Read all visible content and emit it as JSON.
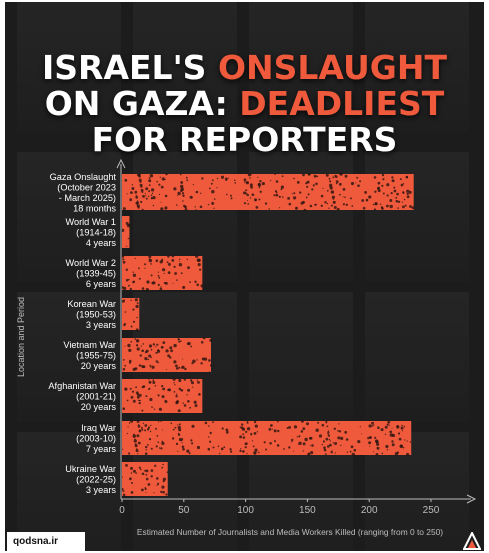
{
  "headline": {
    "line1_white": "ISRAEL'S ",
    "line1_accent": "ONSLAUGHT",
    "line2_white": "ON GAZA: ",
    "line2_accent": "DEADLIEST",
    "line3_white": "FOR REPORTERS"
  },
  "watermark": "qodsna.ir",
  "colors": {
    "background": "#1c1c1c",
    "bar": "#ef5a3c",
    "text": "#ffffff",
    "axis": "#bdbdbd",
    "accent": "#ef5a3c"
  },
  "chart_data": {
    "type": "bar",
    "orientation": "horizontal",
    "categories": [
      [
        "Gaza Onslaught",
        "(October 2023",
        "- March 2025)",
        "18 months"
      ],
      [
        "World War 1",
        "(1914-18)",
        "4 years"
      ],
      [
        "World War 2",
        "(1939-45)",
        "6 years"
      ],
      [
        "Korean War",
        "(1950-53)",
        "3 years"
      ],
      [
        "Vietnam War",
        "(1955-75)",
        "20 years"
      ],
      [
        "Afghanistan War",
        "(2001-21)",
        "20 years"
      ],
      [
        "Iraq War",
        "(2003-10)",
        "7 years"
      ],
      [
        "Ukraine War",
        "(2022-25)",
        "3 years"
      ]
    ],
    "values": [
      236,
      6,
      65,
      14,
      72,
      65,
      234,
      37
    ],
    "xlabel": "Estimated Number of Journalists and Media Workers Killed (ranging from 0 to 250)",
    "ylabel": "Location and Period",
    "xlim": [
      0,
      250
    ],
    "xticks": [
      0,
      50,
      100,
      150,
      200,
      250
    ],
    "grid": false,
    "legend": "none"
  }
}
